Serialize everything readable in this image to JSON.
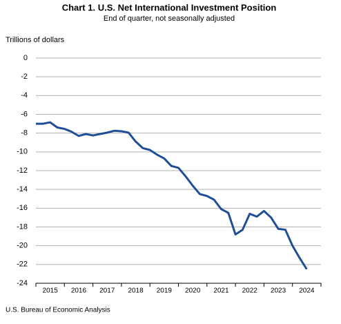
{
  "chart_data": {
    "type": "line",
    "title": "Chart 1. U.S. Net International Investment Position",
    "subtitle": "End of quarter, not seasonally adjusted",
    "y_axis_label": "Trillions of dollars",
    "source": "U.S. Bureau of Economic Analysis",
    "x_labels": [
      "2015",
      "2016",
      "2017",
      "2018",
      "2019",
      "2020",
      "2021",
      "2022",
      "2023",
      "2024"
    ],
    "series": [
      {
        "name": "Net international investment position",
        "color": "#1f4e96",
        "values": [
          -7.0,
          -7.0,
          -6.85,
          -7.4,
          -7.55,
          -7.85,
          -8.3,
          -8.1,
          -8.25,
          -8.1,
          -7.95,
          -7.75,
          -7.8,
          -7.95,
          -8.9,
          -9.6,
          -9.8,
          -10.3,
          -10.7,
          -11.5,
          -11.7,
          -12.6,
          -13.6,
          -14.5,
          -14.7,
          -15.1,
          -16.1,
          -16.5,
          -18.8,
          -18.3,
          -16.6,
          -16.9,
          -16.3,
          -17.0,
          -18.2,
          -18.3,
          -20.0,
          -21.3,
          -22.5
        ]
      }
    ],
    "ylim": [
      -24,
      0
    ],
    "yticks": [
      0,
      -2,
      -4,
      -6,
      -8,
      -10,
      -12,
      -14,
      -16,
      -18,
      -20,
      -22,
      -24
    ],
    "grid": true
  }
}
